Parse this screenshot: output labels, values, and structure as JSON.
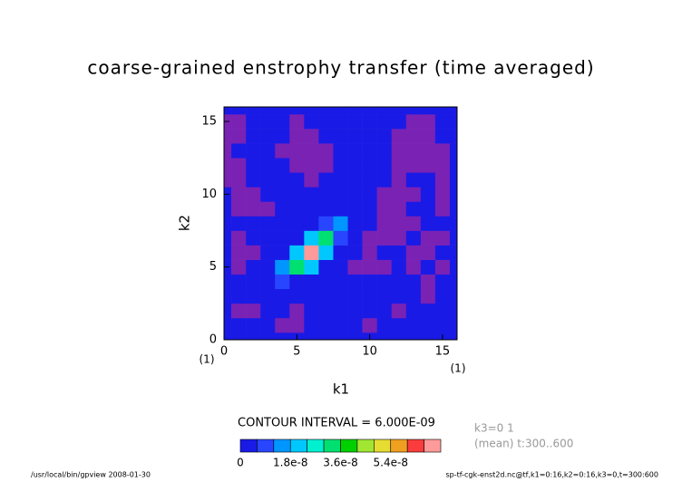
{
  "chart_data": {
    "type": "contour",
    "title": "coarse-grained enstrophy transfer (time averaged)",
    "xlabel": "k1",
    "ylabel": "k2",
    "x_unit": "(1)",
    "y_unit": "(1)",
    "xlim": [
      0,
      16
    ],
    "ylim": [
      0,
      16
    ],
    "xticks": [
      0,
      5,
      10,
      15
    ],
    "yticks": [
      0,
      5,
      10,
      15
    ],
    "x": [
      0,
      1,
      2,
      3,
      4,
      5,
      6,
      7,
      8,
      9,
      10,
      11,
      12,
      13,
      14,
      15,
      16
    ],
    "y": [
      0,
      1,
      2,
      3,
      4,
      5,
      6,
      7,
      8,
      9,
      10,
      11,
      12,
      13,
      14,
      15,
      16
    ],
    "z": [
      [
        2e-09,
        2e-09,
        2e-09,
        2e-09,
        2e-09,
        2e-09,
        2e-09,
        2e-09,
        2e-09,
        2e-09,
        2e-09,
        2e-09,
        2e-09,
        2e-09,
        2e-09,
        2e-09,
        2e-09
      ],
      [
        2e-09,
        2e-09,
        2e-09,
        2e-09,
        -3e-09,
        -3e-09,
        2e-09,
        2e-09,
        2e-09,
        2e-09,
        -3e-09,
        2e-09,
        2e-09,
        2e-09,
        2e-09,
        2e-09,
        2e-09
      ],
      [
        2e-09,
        -3e-09,
        -3e-09,
        2e-09,
        2e-09,
        -3e-09,
        2e-09,
        2e-09,
        2e-09,
        2e-09,
        2e-09,
        2e-09,
        -3e-09,
        2e-09,
        2e-09,
        2e-09,
        2e-09
      ],
      [
        2e-09,
        2e-09,
        2e-09,
        2e-09,
        2e-09,
        2e-09,
        2e-09,
        2e-09,
        2e-09,
        2e-09,
        2e-09,
        2e-09,
        2e-09,
        2e-09,
        -3e-09,
        2e-09,
        2e-09
      ],
      [
        2e-09,
        2e-09,
        2e-09,
        2e-09,
        8e-09,
        2e-09,
        2e-09,
        2e-09,
        2e-09,
        2e-09,
        2e-09,
        2e-09,
        2e-09,
        2e-09,
        -3e-09,
        2e-09,
        2e-09
      ],
      [
        2e-09,
        -3e-09,
        2e-09,
        2e-09,
        1.4e-08,
        3.2e-08,
        2e-08,
        2e-09,
        2e-09,
        -3e-09,
        -3e-09,
        -3e-09,
        2e-09,
        -3e-09,
        2e-09,
        -3e-09,
        2e-09
      ],
      [
        2e-09,
        -3e-09,
        -3e-09,
        2e-09,
        2e-09,
        2e-08,
        7e-08,
        2.2e-08,
        2e-09,
        2e-09,
        -3e-09,
        2e-09,
        2e-09,
        -3e-09,
        -3e-09,
        2e-09,
        2e-09
      ],
      [
        2e-09,
        -3e-09,
        2e-09,
        2e-09,
        2e-09,
        2e-09,
        2.2e-08,
        3.4e-08,
        1e-08,
        2e-09,
        -3e-09,
        -3e-09,
        -3e-09,
        2e-09,
        -3e-09,
        -3e-09,
        2e-09
      ],
      [
        2e-09,
        2e-09,
        2e-09,
        2e-09,
        2e-09,
        2e-09,
        2e-09,
        1e-08,
        1.4e-08,
        2e-09,
        2e-09,
        -3e-09,
        -3e-09,
        -3e-09,
        2e-09,
        2e-09,
        2e-09
      ],
      [
        2e-09,
        -3e-09,
        -3e-09,
        -3e-09,
        2e-09,
        2e-09,
        2e-09,
        2e-09,
        2e-09,
        2e-09,
        2e-09,
        -3e-09,
        -3e-09,
        2e-09,
        2e-09,
        -3e-09,
        2e-09
      ],
      [
        2e-09,
        -3e-09,
        -3e-09,
        2e-09,
        2e-09,
        2e-09,
        2e-09,
        2e-09,
        2e-09,
        2e-09,
        2e-09,
        -3e-09,
        -3e-09,
        -3e-09,
        2e-09,
        -3e-09,
        2e-09
      ],
      [
        -3e-09,
        -3e-09,
        2e-09,
        2e-09,
        2e-09,
        2e-09,
        -3e-09,
        2e-09,
        2e-09,
        2e-09,
        2e-09,
        2e-09,
        -3e-09,
        2e-09,
        2e-09,
        -3e-09,
        2e-09
      ],
      [
        -3e-09,
        -3e-09,
        2e-09,
        2e-09,
        2e-09,
        -3e-09,
        -3e-09,
        -3e-09,
        2e-09,
        2e-09,
        2e-09,
        2e-09,
        -3e-09,
        -3e-09,
        -3e-09,
        -3e-09,
        2e-09
      ],
      [
        -3e-09,
        2e-09,
        2e-09,
        2e-09,
        -3e-09,
        -3e-09,
        -3e-09,
        -3e-09,
        2e-09,
        2e-09,
        2e-09,
        2e-09,
        -3e-09,
        -3e-09,
        -3e-09,
        -3e-09,
        2e-09
      ],
      [
        -3e-09,
        -3e-09,
        2e-09,
        2e-09,
        2e-09,
        -3e-09,
        -3e-09,
        2e-09,
        2e-09,
        2e-09,
        2e-09,
        2e-09,
        -3e-09,
        -3e-09,
        -3e-09,
        2e-09,
        2e-09
      ],
      [
        -3e-09,
        -3e-09,
        2e-09,
        2e-09,
        2e-09,
        -3e-09,
        2e-09,
        2e-09,
        2e-09,
        2e-09,
        2e-09,
        2e-09,
        2e-09,
        -3e-09,
        -3e-09,
        2e-09,
        2e-09
      ],
      [
        2e-09,
        2e-09,
        2e-09,
        2e-09,
        2e-09,
        2e-09,
        2e-09,
        2e-09,
        2e-09,
        2e-09,
        2e-09,
        2e-09,
        2e-09,
        2e-09,
        2e-09,
        2e-09,
        2e-09
      ]
    ],
    "clim": [
      0,
      7.2e-08
    ],
    "colors": [
      "#1a1ae6",
      "#2846ff",
      "#0096ff",
      "#00c8ff",
      "#00f0d0",
      "#00e070",
      "#00d000",
      "#a0e632",
      "#e6dc32",
      "#f0a020",
      "#fa3c3c",
      "#ff9a9a"
    ],
    "below_color": "#7a22b4",
    "cticks": [
      0,
      {
        "value": 1.8e-08,
        "label": "1.8e-8"
      },
      {
        "value": 3.6e-08,
        "label": "3.6e-8"
      },
      {
        "value": 5.4e-08,
        "label": "5.4e-8"
      }
    ],
    "contour_label": "CONTOUR INTERVAL = 6.000E-09",
    "info_lines": [
      "k3=0 1",
      "(mean) t:300..600"
    ],
    "footer_left": "/usr/local/bin/gpview  2008-01-30",
    "footer_right": "sp-tf-cgk-enst2d.nc@tf,k1=0:16,k2=0:16,k3=0,t=300:600"
  }
}
